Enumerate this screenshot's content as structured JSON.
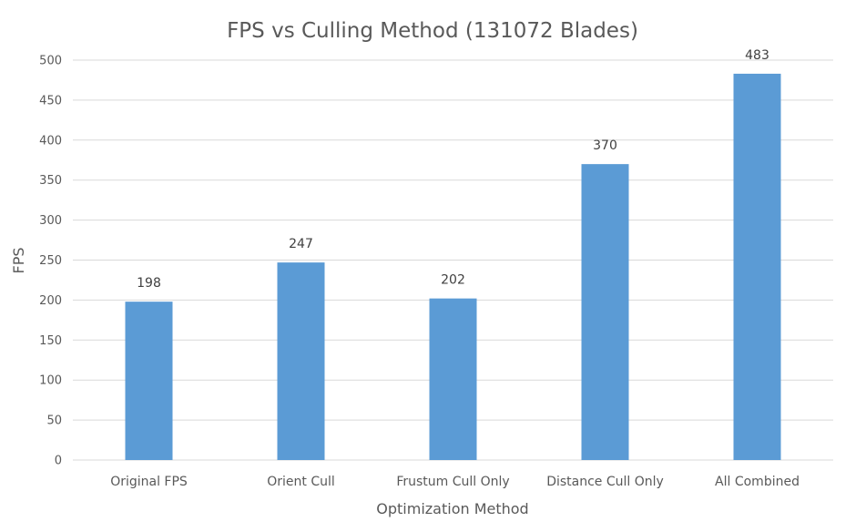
{
  "chart_data": {
    "type": "bar",
    "title": "FPS vs Culling Method (131072 Blades)",
    "xlabel": "Optimization Method",
    "ylabel": "FPS",
    "categories": [
      "Original FPS",
      "Orient Cull",
      "Frustum Cull Only",
      "Distance Cull Only",
      "All Combined"
    ],
    "values": [
      198,
      247,
      202,
      370,
      483
    ],
    "data_labels": [
      "198",
      "247",
      "202",
      "370",
      "483"
    ],
    "ylim": [
      0,
      500
    ],
    "yticks": [
      0,
      50,
      100,
      150,
      200,
      250,
      300,
      350,
      400,
      450,
      500
    ],
    "ytick_labels": [
      "0",
      "50",
      "100",
      "150",
      "200",
      "250",
      "300",
      "350",
      "400",
      "450",
      "500"
    ],
    "grid": true,
    "legend": "none",
    "bar_color": "#5b9bd5"
  }
}
